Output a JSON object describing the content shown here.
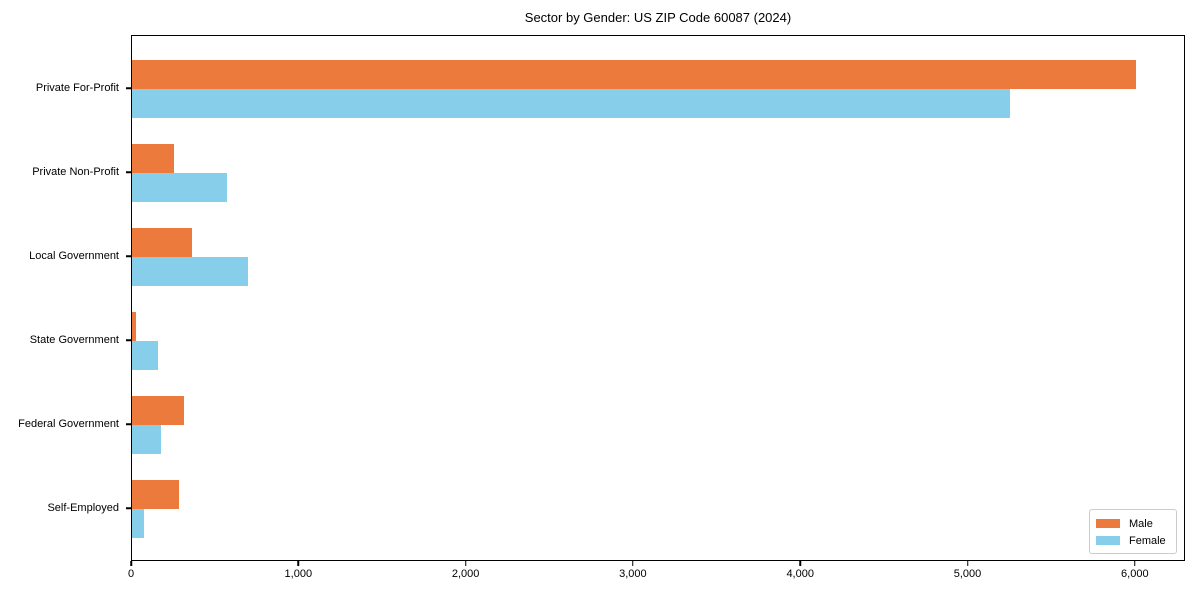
{
  "chart_data": {
    "type": "bar",
    "orientation": "horizontal",
    "title": "Sector by Gender: US ZIP Code 60087 (2024)",
    "categories": [
      "Private For-Profit",
      "Private Non-Profit",
      "Local Government",
      "State Government",
      "Federal Government",
      "Self-Employed"
    ],
    "series": [
      {
        "name": "Male",
        "color": "#ec7a3c",
        "values": [
          6000,
          250,
          360,
          25,
          310,
          280
        ]
      },
      {
        "name": "Female",
        "color": "#87ceeb",
        "values": [
          5245,
          570,
          695,
          155,
          175,
          70
        ]
      }
    ],
    "xlabel": "",
    "ylabel": "",
    "xlim": [
      0,
      6300
    ],
    "xticks": [
      0,
      1000,
      2000,
      3000,
      4000,
      5000,
      6000
    ],
    "xtick_labels": [
      "0",
      "1,000",
      "2,000",
      "3,000",
      "4,000",
      "5,000",
      "6,000"
    ],
    "grid": false,
    "legend_position": "lower right",
    "legend": {
      "items": [
        {
          "label": "Male",
          "color": "#ec7a3c"
        },
        {
          "label": "Female",
          "color": "#87ceeb"
        }
      ]
    }
  }
}
